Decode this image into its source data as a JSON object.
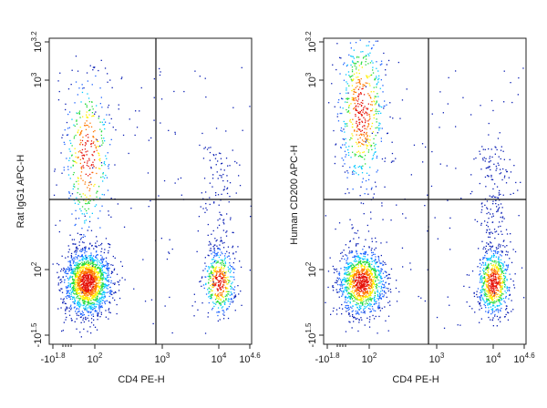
{
  "chart_data": [
    {
      "type": "scatter",
      "subtype": "flow-cytometry-density-dot-plot",
      "title": "",
      "xlabel": "CD4 PE-H",
      "ylabel": "Rat IgG1 APC-H",
      "xscale": "biexponential",
      "yscale": "biexponential",
      "xlim": [
        -63,
        40000
      ],
      "ylim": [
        -32,
        1585
      ],
      "x_tick_labels": [
        "-10^1.8",
        "10^2",
        "10^3",
        "10^4",
        "10^4.6"
      ],
      "y_tick_labels": [
        "-10^1.5",
        "10^2",
        "10^3",
        "10^3.2"
      ],
      "x_ticks": [
        -63,
        100,
        1000,
        10000,
        40000
      ],
      "y_ticks": [
        -32,
        100,
        1000,
        1585
      ],
      "quadrant_gate": {
        "x": 700,
        "y": 280
      },
      "grid": false,
      "legend": "none",
      "density_colors": [
        "#0a1eb4",
        "#1e64ff",
        "#00c8ff",
        "#28dc3c",
        "#fff000",
        "#ff7800",
        "#e6140a"
      ],
      "populations": [
        {
          "x_center": 70,
          "y_center": 75,
          "weight": 0.62
        },
        {
          "x_center": 70,
          "y_center": 400,
          "weight": 0.15
        },
        {
          "x_center": 10000,
          "y_center": 75,
          "weight": 0.21
        }
      ]
    },
    {
      "type": "scatter",
      "subtype": "flow-cytometry-density-dot-plot",
      "title": "",
      "xlabel": "CD4 PE-H",
      "ylabel": "Human CD200 APC-H",
      "xscale": "biexponential",
      "yscale": "biexponential",
      "xlim": [
        -63,
        40000
      ],
      "ylim": [
        -32,
        1585
      ],
      "x_tick_labels": [
        "-10^1.8",
        "10^2",
        "10^3",
        "10^4",
        "10^4.6"
      ],
      "y_tick_labels": [
        "-10^1.5",
        "10^2",
        "10^3",
        "10^3.2"
      ],
      "x_ticks": [
        -63,
        100,
        1000,
        10000,
        40000
      ],
      "y_ticks": [
        -32,
        100,
        1000,
        1585
      ],
      "quadrant_gate": {
        "x": 700,
        "y": 280
      },
      "grid": false,
      "legend": "none",
      "density_colors": [
        "#0a1eb4",
        "#1e64ff",
        "#00c8ff",
        "#28dc3c",
        "#fff000",
        "#ff7800",
        "#e6140a"
      ],
      "populations": [
        {
          "x_center": 70,
          "y_center": 75,
          "weight": 0.45
        },
        {
          "x_center": 70,
          "y_center": 700,
          "weight": 0.22
        },
        {
          "x_center": 10000,
          "y_center": 75,
          "weight": 0.33
        }
      ]
    }
  ]
}
